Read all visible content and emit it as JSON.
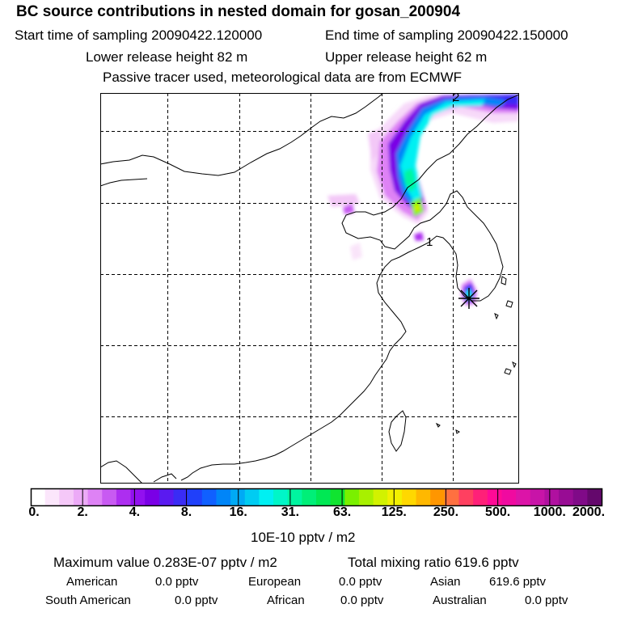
{
  "header": {
    "title": "BC  source contributions in nested domain for gosan_200904",
    "start_label": "Start time of sampling 20090422.120000",
    "end_label": "End time of sampling 20090422.150000",
    "lower_label": "Lower release height   82 m",
    "upper_label": "Upper release height   62 m",
    "note": "Passive tracer used, meteorological data are from ECMWF"
  },
  "chart_data": {
    "type": "heatmap",
    "title": "BC  source contributions in nested domain for gosan_200904",
    "colorbar": {
      "ticks": [
        "0.",
        "2.",
        "4.",
        "8.",
        "16.",
        "31.",
        "63.",
        "125.",
        "250.",
        "500.",
        "1000.",
        "2000."
      ],
      "units": "10E-10 pptv / m2",
      "colors": [
        "#ffffff",
        "#fbe6fb",
        "#f5c8f8",
        "#ecaaf7",
        "#de82f5",
        "#c85af2",
        "#ad2ef0",
        "#9210f0",
        "#7a00e6",
        "#5a1af0",
        "#3a2cf5",
        "#2040fa",
        "#1060ff",
        "#0085f8",
        "#00aaf5",
        "#00ccf2",
        "#00f0f2",
        "#00f6c8",
        "#00f5a0",
        "#00ef78",
        "#00e854",
        "#10e430",
        "#7af000",
        "#a8f000",
        "#d2f200",
        "#f2f000",
        "#ffd800",
        "#ffb800",
        "#ff9600",
        "#ff7040",
        "#ff4060",
        "#ff2078",
        "#ff0a96",
        "#f00aa0",
        "#dc14a8",
        "#c814a8",
        "#b010a0",
        "#980c94",
        "#800a88",
        "#64086c"
      ]
    },
    "markers": [
      {
        "label": "1"
      },
      {
        "label": "2"
      }
    ]
  },
  "summary": {
    "max_label": "Maximum value  0.283E-07 pptv / m2",
    "total_label": "Total mixing ratio      619.6 pptv",
    "rows": [
      {
        "name": "American",
        "value": "0.0 pptv"
      },
      {
        "name": "European",
        "value": "0.0 pptv"
      },
      {
        "name": "Asian",
        "value": "619.6 pptv"
      },
      {
        "name": "South American",
        "value": "0.0 pptv"
      },
      {
        "name": "African",
        "value": "0.0 pptv"
      },
      {
        "name": "Australian",
        "value": "0.0 pptv"
      }
    ]
  }
}
